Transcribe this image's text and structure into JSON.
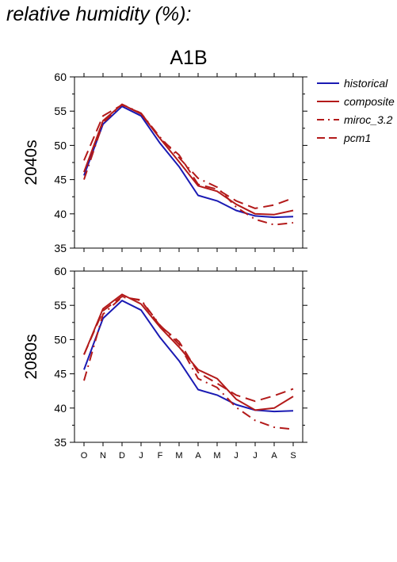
{
  "page": {
    "title": "relative humidity (%):"
  },
  "colors": {
    "historical": "#1a1ab3",
    "scenario": "#b31a1a",
    "axis": "#000000"
  },
  "chart_data": [
    {
      "type": "line",
      "title": "A1B",
      "ylabel": "2040s",
      "x": [
        "O",
        "N",
        "D",
        "J",
        "F",
        "M",
        "A",
        "M",
        "J",
        "J",
        "A",
        "S"
      ],
      "ylim": [
        35,
        60
      ],
      "yticks": [
        35,
        40,
        45,
        50,
        55,
        60
      ],
      "grid": false,
      "legend_position": "right",
      "series": [
        {
          "name": "historical",
          "color": "#1a1ab3",
          "dash": "solid",
          "values": [
            45.6,
            53.1,
            55.7,
            54.3,
            50.3,
            46.9,
            42.7,
            41.9,
            40.5,
            39.7,
            39.5,
            39.6
          ]
        },
        {
          "name": "composite",
          "color": "#b31a1a",
          "dash": "solid",
          "values": [
            46.1,
            53.6,
            56.0,
            54.6,
            51.0,
            47.6,
            44.1,
            43.3,
            41.4,
            40.0,
            39.9,
            40.5
          ]
        },
        {
          "name": "miroc_3.2",
          "color": "#b31a1a",
          "dash": "dashdot",
          "values": [
            45.0,
            53.3,
            56.0,
            54.7,
            51.2,
            48.2,
            45.2,
            43.9,
            41.0,
            39.2,
            38.4,
            38.7
          ]
        },
        {
          "name": "pcm1",
          "color": "#b31a1a",
          "dash": "dash",
          "values": [
            47.8,
            54.3,
            55.9,
            54.7,
            51.0,
            48.6,
            44.3,
            43.6,
            41.9,
            40.8,
            41.3,
            42.3
          ]
        }
      ]
    },
    {
      "type": "line",
      "title": "",
      "ylabel": "2080s",
      "x": [
        "O",
        "N",
        "D",
        "J",
        "F",
        "M",
        "A",
        "M",
        "J",
        "J",
        "A",
        "S"
      ],
      "ylim": [
        35,
        60
      ],
      "yticks": [
        35,
        40,
        45,
        50,
        55,
        60
      ],
      "grid": false,
      "series": [
        {
          "name": "historical",
          "color": "#1a1ab3",
          "dash": "solid",
          "values": [
            45.6,
            53.1,
            55.7,
            54.3,
            50.3,
            46.9,
            42.7,
            41.9,
            40.5,
            39.7,
            39.5,
            39.6
          ]
        },
        {
          "name": "composite",
          "color": "#b31a1a",
          "dash": "solid",
          "values": [
            47.8,
            54.5,
            56.6,
            55.2,
            51.8,
            48.9,
            45.6,
            44.3,
            41.3,
            39.7,
            40.0,
            41.7
          ]
        },
        {
          "name": "miroc_3.2",
          "color": "#b31a1a",
          "dash": "dashdot",
          "values": [
            44.0,
            53.7,
            56.2,
            55.8,
            52.1,
            49.3,
            44.3,
            43.0,
            40.1,
            38.2,
            37.2,
            36.9
          ]
        },
        {
          "name": "pcm1",
          "color": "#b31a1a",
          "dash": "dash",
          "values": [
            47.8,
            54.2,
            56.3,
            55.7,
            52.0,
            49.7,
            45.2,
            43.6,
            41.9,
            41.0,
            41.8,
            42.8
          ]
        }
      ]
    }
  ]
}
